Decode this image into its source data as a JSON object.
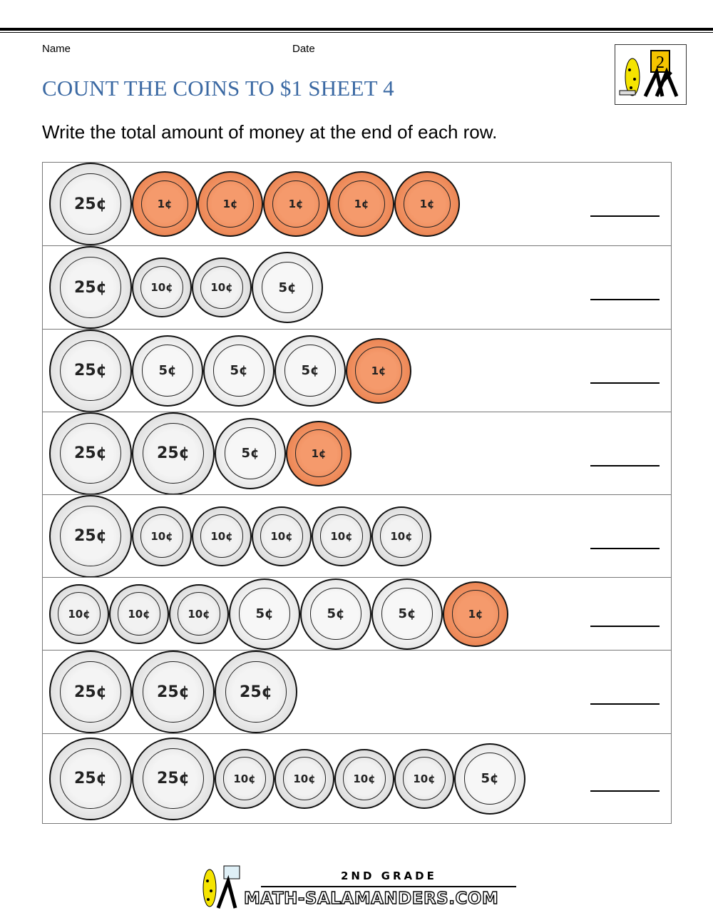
{
  "header": {
    "name_label": "Name",
    "date_label": "Date",
    "title": "COUNT THE COINS TO $1 SHEET 4",
    "instructions": "Write the total amount of money at the end of each row.",
    "logo_text": "2"
  },
  "colors": {
    "title": "#3b69a3",
    "penny": "#e4743f",
    "silver": "#d6d6d6"
  },
  "rows": [
    [
      "quarter",
      "penny",
      "penny",
      "penny",
      "penny",
      "penny"
    ],
    [
      "quarter",
      "dime",
      "dime",
      "nickel"
    ],
    [
      "quarter",
      "nickel",
      "nickel",
      "nickel",
      "penny"
    ],
    [
      "quarter",
      "quarter",
      "nickel",
      "penny"
    ],
    [
      "quarter",
      "dime",
      "dime",
      "dime",
      "dime",
      "dime"
    ],
    [
      "dime",
      "dime",
      "dime",
      "nickel",
      "nickel",
      "nickel",
      "penny"
    ],
    [
      "quarter",
      "quarter",
      "quarter"
    ],
    [
      "quarter",
      "quarter",
      "dime",
      "dime",
      "dime",
      "dime",
      "nickel"
    ]
  ],
  "footer": {
    "grade": "2ND GRADE",
    "site": "MATH-SALAMANDERS.COM"
  }
}
